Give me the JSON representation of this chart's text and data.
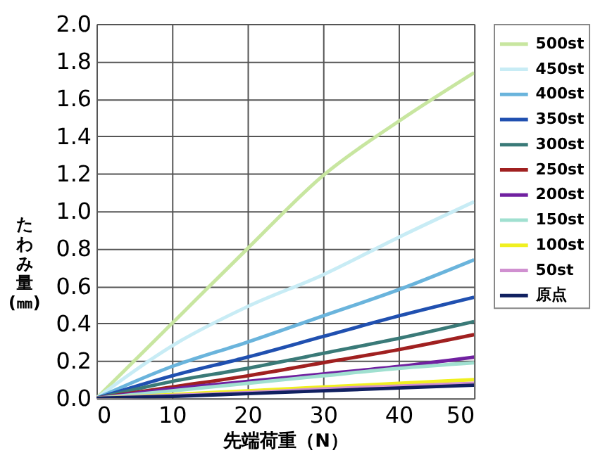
{
  "chart_data": {
    "type": "line",
    "xlabel": "先端荷重（N）",
    "ylabel": "たわみ量(㎜)",
    "x": [
      0,
      10,
      20,
      30,
      40,
      50
    ],
    "xlim": [
      0,
      50
    ],
    "xticks": [
      0,
      10,
      20,
      30,
      40,
      50
    ],
    "ylim": [
      0,
      2.0
    ],
    "yticks": [
      {
        "value": 0,
        "label": "0.0"
      },
      0.2,
      0.4,
      0.6,
      0.8,
      {
        "value": 1,
        "label": "1.0"
      },
      1.2,
      1.4,
      1.6,
      1.8,
      {
        "value": 2,
        "label": "2.0"
      }
    ],
    "grid": true,
    "legend": "right",
    "marker": "none",
    "line_style": "solid",
    "series": [
      {
        "name": "500st",
        "color": "#c8e6a0",
        "values": [
          0,
          0.4,
          0.8,
          1.19,
          1.48,
          1.74
        ]
      },
      {
        "name": "450st",
        "color": "#c8ecf5",
        "values": [
          0,
          0.28,
          0.49,
          0.66,
          0.86,
          1.05
        ]
      },
      {
        "name": "400st",
        "color": "#6ab4dc",
        "values": [
          0,
          0.17,
          0.3,
          0.44,
          0.58,
          0.74
        ]
      },
      {
        "name": "350st",
        "color": "#2050b0",
        "values": [
          0,
          0.12,
          0.22,
          0.33,
          0.44,
          0.54
        ]
      },
      {
        "name": "300st",
        "color": "#3a7a78",
        "values": [
          0,
          0.09,
          0.16,
          0.24,
          0.32,
          0.41
        ]
      },
      {
        "name": "250st",
        "color": "#a02020",
        "values": [
          0,
          0.06,
          0.12,
          0.19,
          0.26,
          0.34
        ]
      },
      {
        "name": "200st",
        "color": "#7020a0",
        "values": [
          0,
          0.05,
          0.09,
          0.13,
          0.17,
          0.22
        ]
      },
      {
        "name": "150st",
        "color": "#a0e0d0",
        "values": [
          0,
          0.04,
          0.08,
          0.12,
          0.16,
          0.19
        ]
      },
      {
        "name": "100st",
        "color": "#f0f020",
        "values": [
          0,
          0.02,
          0.04,
          0.06,
          0.08,
          0.1
        ]
      },
      {
        "name": "50st",
        "color": "#d090d0",
        "values": [
          0,
          0.015,
          0.03,
          0.05,
          0.065,
          0.08
        ]
      },
      {
        "name": "原点",
        "color": "#102060",
        "values": [
          0,
          0.01,
          0.025,
          0.04,
          0.055,
          0.07
        ]
      }
    ]
  }
}
